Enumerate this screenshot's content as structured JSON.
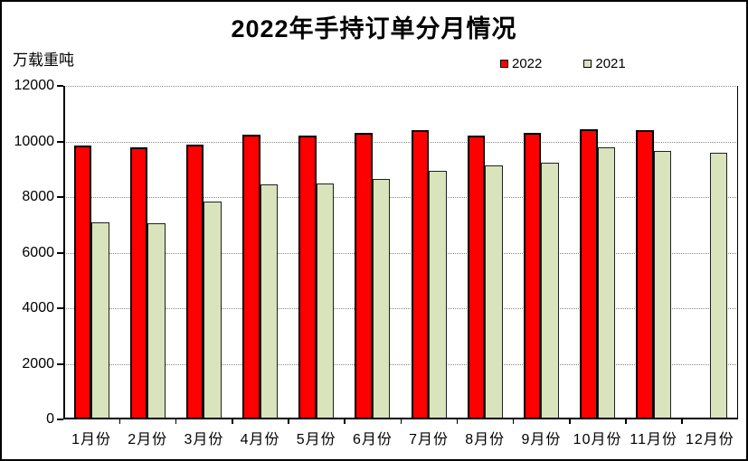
{
  "title": "2022年手持订单分月情况",
  "y_unit_label": "万载重吨",
  "colors": {
    "series_2022": "#FF0000",
    "series_2021": "#D9E3BC",
    "bar_border": "#000000",
    "gridline": "#888888",
    "axis": "#000000"
  },
  "chart_data": {
    "type": "bar",
    "title": "2022年手持订单分月情况",
    "xlabel": "",
    "ylabel": "万载重吨",
    "categories": [
      "1月份",
      "2月份",
      "3月份",
      "4月份",
      "5月份",
      "6月份",
      "7月份",
      "8月份",
      "9月份",
      "10月份",
      "11月份",
      "12月份"
    ],
    "series": [
      {
        "name": "2022",
        "color": "#FF0000",
        "values": [
          9850,
          9800,
          9900,
          10250,
          10200,
          10300,
          10400,
          10200,
          10300,
          10450,
          10400,
          null
        ]
      },
      {
        "name": "2021",
        "color": "#D9E3BC",
        "values": [
          7100,
          7050,
          7850,
          8450,
          8500,
          8650,
          8950,
          9150,
          9250,
          9800,
          9650,
          9600
        ]
      }
    ],
    "ylim": [
      0,
      12000
    ],
    "ytick_interval": 2000,
    "ytick_labels": [
      "0",
      "2000",
      "4000",
      "6000",
      "8000",
      "10000",
      "12000"
    ],
    "grid": "horizontal-dotted",
    "legend_position": "top-right",
    "legend_entries": [
      "2022",
      "2021"
    ]
  }
}
